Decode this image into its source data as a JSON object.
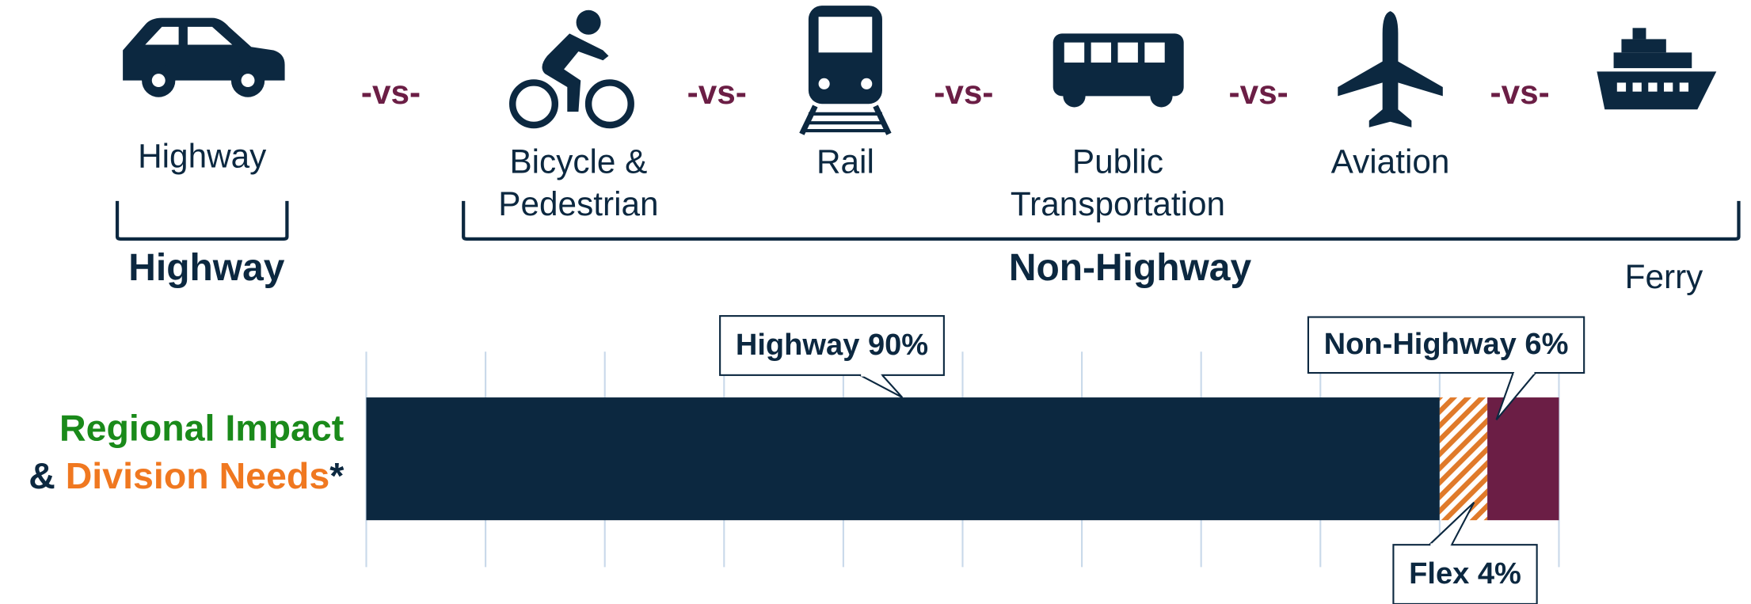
{
  "chart_data": {
    "type": "stacked-bar-horizontal",
    "modes": [
      "Highway",
      "Bicycle &\nPedestrian",
      "Rail",
      "Public\nTransportation",
      "Aviation",
      "Ferry"
    ],
    "separator": "-vs-",
    "groups": [
      "Highway",
      "Non-Highway"
    ],
    "category_parts": [
      "Regional Impact",
      "& ",
      "Division Needs",
      "*"
    ],
    "xlim": [
      0,
      100
    ],
    "xticks": [
      0,
      10,
      20,
      30,
      40,
      50,
      60,
      70,
      80,
      90,
      100
    ],
    "grid": true,
    "series": [
      {
        "name": "Highway",
        "color": "#0c2840",
        "values": [
          90
        ],
        "value_labels": [
          "Highway 90%"
        ]
      },
      {
        "name": "Flex",
        "color": "#e07a2a",
        "pattern": "hatch",
        "values": [
          4
        ],
        "value_labels": [
          "Flex 4%"
        ]
      },
      {
        "name": "Non-Highway",
        "color": "#6b1e45",
        "values": [
          6
        ],
        "value_labels": [
          "Non-Highway 6%"
        ]
      }
    ]
  }
}
